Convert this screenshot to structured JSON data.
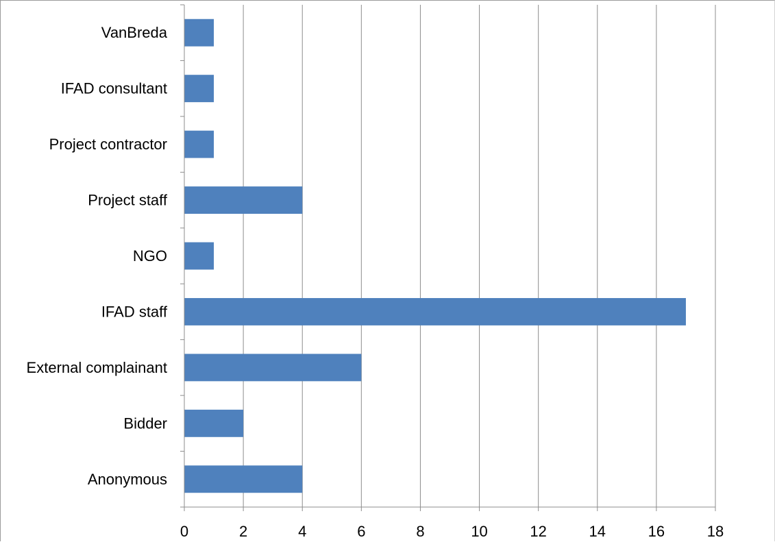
{
  "chart_data": {
    "type": "bar",
    "orientation": "horizontal",
    "categories": [
      "VanBreda",
      "IFAD consultant",
      "Project contractor",
      "Project staff",
      "NGO",
      "IFAD staff",
      "External complainant",
      "Bidder",
      "Anonymous"
    ],
    "values": [
      1,
      1,
      1,
      4,
      1,
      17,
      6,
      2,
      4
    ],
    "xlim": [
      0,
      18
    ],
    "xticks": [
      "0",
      "2",
      "4",
      "6",
      "8",
      "10",
      "12",
      "14",
      "16",
      "18"
    ],
    "grid": "vertical",
    "legend": "none",
    "bar_color": "#4f81bd",
    "title": "",
    "xlabel": "",
    "ylabel": ""
  }
}
